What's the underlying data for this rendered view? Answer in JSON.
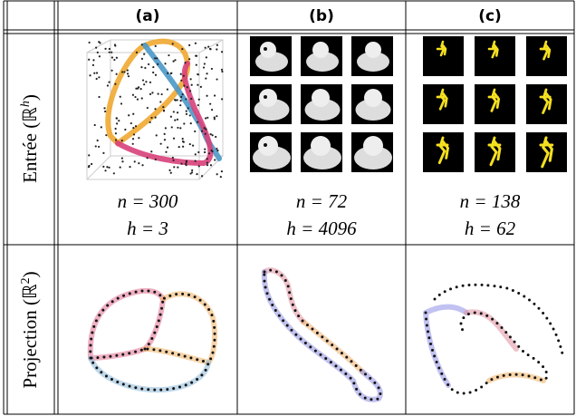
{
  "header": {
    "columns": [
      "(a)",
      "(b)",
      "(c)"
    ]
  },
  "rows": [
    {
      "text": "Entrée (ℝ",
      "sup": "h",
      "end": ")",
      "cells": [
        {
          "n": "n = 300",
          "h": "h = 3"
        },
        {
          "n": "n = 72",
          "h": "h = 4096"
        },
        {
          "n": "n = 138",
          "h": "h = 62"
        }
      ]
    },
    {
      "text": "Projection (ℝ",
      "sup": "2",
      "end": ")"
    }
  ]
}
